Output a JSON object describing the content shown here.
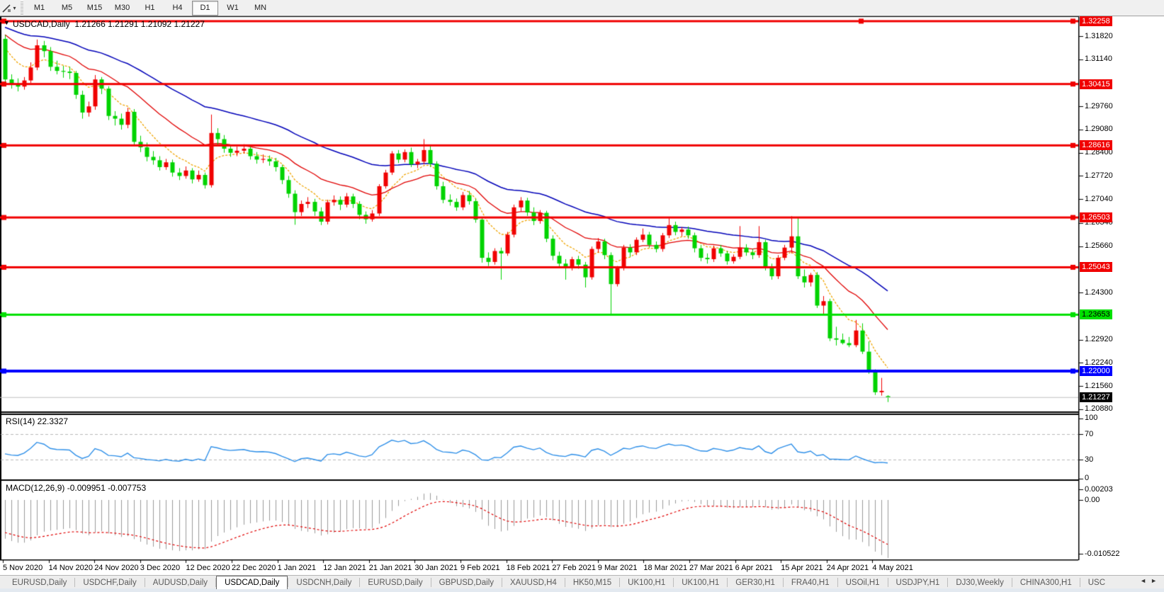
{
  "toolbar": {
    "cursor_tool": "line-draw",
    "timeframes": [
      "M1",
      "M5",
      "M15",
      "M30",
      "H1",
      "H4",
      "D1",
      "W1",
      "MN"
    ],
    "active_timeframe": "D1"
  },
  "chart_header": {
    "collapse_arrow": "▼",
    "symbol_label": "USDCAD,Daily",
    "ohlc_text": "1.21266 1.21291 1.21092 1.21227"
  },
  "tabs": {
    "items": [
      "EURUSD,Daily",
      "USDCHF,Daily",
      "AUDUSD,Daily",
      "USDCAD,Daily",
      "USDCNH,Daily",
      "EURUSD,Daily",
      "GBPUSD,Daily",
      "XAUUSD,H4",
      "HK50,M15",
      "UK100,H1",
      "UK100,H1",
      "GER30,H1",
      "FRA40,H1",
      "USOil,H1",
      "USDJPY,H1",
      "DJ30,Weekly",
      "CHINA300,H1",
      "USC"
    ],
    "active": "USDCAD,Daily",
    "scroll_left_arrow": "◄",
    "scroll_right_arrow": "►"
  },
  "chart_data": {
    "type": "candlestick",
    "symbol": "USDCAD",
    "timeframe": "Daily",
    "up_color": "#f00000",
    "down_color": "#00d300",
    "last_ohlc": {
      "open": "1.21266",
      "high": "1.21291",
      "low": "1.21092",
      "close": "1.21227"
    },
    "price_axis_ticks": [
      "1.31820",
      "1.31140",
      "1.29760",
      "1.29080",
      "1.28400",
      "1.27720",
      "1.27040",
      "1.26340",
      "1.25660",
      "1.24300",
      "1.22920",
      "1.22240",
      "1.21560",
      "1.20880"
    ],
    "price_badges": [
      {
        "text": "1.32258",
        "bg": "#f00000",
        "fg": "#ffffff"
      },
      {
        "text": "1.30415",
        "bg": "#f00000",
        "fg": "#ffffff"
      },
      {
        "text": "1.28616",
        "bg": "#f00000",
        "fg": "#ffffff"
      },
      {
        "text": "1.26503",
        "bg": "#f00000",
        "fg": "#ffffff"
      },
      {
        "text": "1.25043",
        "bg": "#f00000",
        "fg": "#ffffff"
      },
      {
        "text": "1.23653",
        "bg": "#00e000",
        "fg": "#000000"
      },
      {
        "text": "1.22000",
        "bg": "#0000ff",
        "fg": "#ffffff"
      },
      {
        "text": "1.21227",
        "bg": "#000000",
        "fg": "#ffffff"
      }
    ],
    "horizontal_lines": [
      {
        "price": 1.32258,
        "color": "#f00000",
        "width": 3,
        "handles": [
          2,
          1212,
          1511
        ]
      },
      {
        "price": 1.30415,
        "color": "#f00000",
        "width": 3,
        "handles": [
          2,
          1511
        ]
      },
      {
        "price": 1.28616,
        "color": "#f00000",
        "width": 3,
        "handles": [
          2,
          1511
        ]
      },
      {
        "price": 1.26503,
        "color": "#f00000",
        "width": 3,
        "handles": [
          2,
          1511
        ]
      },
      {
        "price": 1.25043,
        "color": "#f00000",
        "width": 3,
        "handles": [
          2,
          1511
        ]
      },
      {
        "price": 1.23653,
        "color": "#00e000",
        "width": 3,
        "handles": [
          2,
          1511
        ]
      },
      {
        "price": 1.22,
        "color": "#0000ff",
        "width": 4,
        "handles": [
          2,
          1511
        ]
      },
      {
        "price": 1.21227,
        "color": "#c0c0c0",
        "width": 1,
        "handles": []
      }
    ],
    "x_axis_dates": [
      "5 Nov 2020",
      "14 Nov 2020",
      "24 Nov 2020",
      "3 Dec 2020",
      "12 Dec 2020",
      "22 Dec 2020",
      "1 Jan 2021",
      "12 Jan 2021",
      "21 Jan 2021",
      "30 Jan 2021",
      "9 Feb 2021",
      "18 Feb 2021",
      "27 Feb 2021",
      "9 Mar 2021",
      "18 Mar 2021",
      "27 Mar 2021",
      "6 Apr 2021",
      "15 Apr 2021",
      "24 Apr 2021",
      "4 May 2021"
    ],
    "moving_averages": [
      {
        "name": "fast",
        "color": "#efa400",
        "style": "dashed",
        "period": 8,
        "seed": 1.3174
      },
      {
        "name": "medium",
        "color": "#e00000",
        "style": "solid",
        "period": 20,
        "seed": 1.32
      },
      {
        "name": "slow",
        "color": "#0000b8",
        "style": "solid",
        "period": 45,
        "seed": 1.3215
      }
    ],
    "rsi": {
      "label": "RSI(14) 22.3327",
      "period": 14,
      "value": 22.3327,
      "levels": [
        "100",
        "70",
        "30",
        "0"
      ],
      "level_lines": [
        70,
        30
      ],
      "line_color": "#2e8fe8"
    },
    "macd": {
      "label": "MACD(12,26,9) -0.009951 -0.007753",
      "main_value": -0.009951,
      "signal_value": -0.007753,
      "axis_labels": [
        "0.00203",
        "0.00",
        "-0.010522"
      ],
      "axis_max": 0.00203,
      "axis_min": -0.010522,
      "histogram_color": "#9a9a9a",
      "signal_color": "#e00000"
    },
    "candles": [
      [
        1.3174,
        1.3185,
        1.304,
        1.3055
      ],
      [
        1.3055,
        1.307,
        1.3028,
        1.304
      ],
      [
        1.304,
        1.3058,
        1.302,
        1.3034
      ],
      [
        1.3034,
        1.3062,
        1.3025,
        1.3052
      ],
      [
        1.3052,
        1.3105,
        1.3045,
        1.309
      ],
      [
        1.309,
        1.3172,
        1.3082,
        1.3155
      ],
      [
        1.3155,
        1.3168,
        1.312,
        1.3138
      ],
      [
        1.3138,
        1.315,
        1.308,
        1.3092
      ],
      [
        1.3092,
        1.311,
        1.307,
        1.308
      ],
      [
        1.308,
        1.3095,
        1.306,
        1.3078
      ],
      [
        1.3078,
        1.3092,
        1.3056,
        1.3074
      ],
      [
        1.3074,
        1.308,
        1.2998,
        1.301
      ],
      [
        1.301,
        1.3022,
        1.294,
        1.2958
      ],
      [
        1.2958,
        1.299,
        1.2946,
        1.2976
      ],
      [
        1.2976,
        1.3068,
        1.2966,
        1.3055
      ],
      [
        1.3055,
        1.3062,
        1.3012,
        1.3028
      ],
      [
        1.3028,
        1.3035,
        1.2936,
        1.2948
      ],
      [
        1.2948,
        1.2962,
        1.292,
        1.294
      ],
      [
        1.294,
        1.2955,
        1.2908,
        1.2922
      ],
      [
        1.2922,
        1.2972,
        1.2912,
        1.296
      ],
      [
        1.296,
        1.2968,
        1.286,
        1.2872
      ],
      [
        1.2872,
        1.289,
        1.2842,
        1.2856
      ],
      [
        1.2856,
        1.287,
        1.2815,
        1.2828
      ],
      [
        1.2828,
        1.2845,
        1.2805,
        1.2818
      ],
      [
        1.2818,
        1.283,
        1.2788,
        1.2798
      ],
      [
        1.2798,
        1.2822,
        1.279,
        1.2812
      ],
      [
        1.2812,
        1.282,
        1.277,
        1.2782
      ],
      [
        1.2782,
        1.2795,
        1.276,
        1.2772
      ],
      [
        1.2772,
        1.28,
        1.2764,
        1.2788
      ],
      [
        1.2788,
        1.2795,
        1.275,
        1.2762
      ],
      [
        1.2762,
        1.2788,
        1.2755,
        1.2775
      ],
      [
        1.2775,
        1.2782,
        1.2735,
        1.2745
      ],
      [
        1.2745,
        1.2952,
        1.2738,
        1.2898
      ],
      [
        1.2898,
        1.2912,
        1.2862,
        1.288
      ],
      [
        1.288,
        1.2892,
        1.284,
        1.2852
      ],
      [
        1.2852,
        1.2862,
        1.2828,
        1.284
      ],
      [
        1.284,
        1.2858,
        1.283,
        1.2846
      ],
      [
        1.2846,
        1.2865,
        1.2838,
        1.2852
      ],
      [
        1.2852,
        1.286,
        1.282,
        1.283
      ],
      [
        1.283,
        1.2842,
        1.2808,
        1.282
      ],
      [
        1.282,
        1.2835,
        1.281,
        1.2822
      ],
      [
        1.2822,
        1.2832,
        1.2802,
        1.2815
      ],
      [
        1.2815,
        1.2825,
        1.2785,
        1.2798
      ],
      [
        1.2798,
        1.2805,
        1.2748,
        1.276
      ],
      [
        1.276,
        1.2772,
        1.2708,
        1.272
      ],
      [
        1.272,
        1.273,
        1.2629,
        1.2666
      ],
      [
        1.2666,
        1.27,
        1.2655,
        1.269
      ],
      [
        1.269,
        1.271,
        1.2678,
        1.2696
      ],
      [
        1.2696,
        1.2705,
        1.2655,
        1.2668
      ],
      [
        1.2668,
        1.268,
        1.2628,
        1.2638
      ],
      [
        1.2638,
        1.2702,
        1.263,
        1.2695
      ],
      [
        1.2695,
        1.2715,
        1.2685,
        1.2702
      ],
      [
        1.2702,
        1.2712,
        1.2672,
        1.2688
      ],
      [
        1.2688,
        1.2722,
        1.268,
        1.2712
      ],
      [
        1.2712,
        1.272,
        1.2678,
        1.269
      ],
      [
        1.269,
        1.2698,
        1.2645,
        1.2658
      ],
      [
        1.2658,
        1.2668,
        1.2632,
        1.2645
      ],
      [
        1.2645,
        1.2672,
        1.2638,
        1.2662
      ],
      [
        1.2662,
        1.2748,
        1.2655,
        1.2742
      ],
      [
        1.2742,
        1.279,
        1.2735,
        1.2782
      ],
      [
        1.2782,
        1.2845,
        1.2775,
        1.2838
      ],
      [
        1.2838,
        1.2848,
        1.281,
        1.282
      ],
      [
        1.282,
        1.285,
        1.2812,
        1.2842
      ],
      [
        1.2842,
        1.2855,
        1.2798,
        1.2806
      ],
      [
        1.2806,
        1.2822,
        1.2795,
        1.2814
      ],
      [
        1.2814,
        1.288,
        1.2806,
        1.2848
      ],
      [
        1.2848,
        1.2862,
        1.2798,
        1.2808
      ],
      [
        1.2808,
        1.2815,
        1.2732,
        1.2742
      ],
      [
        1.2742,
        1.2755,
        1.2692,
        1.2702
      ],
      [
        1.2702,
        1.2718,
        1.2685,
        1.2696
      ],
      [
        1.2696,
        1.2706,
        1.267,
        1.268
      ],
      [
        1.268,
        1.2725,
        1.2672,
        1.2716
      ],
      [
        1.2716,
        1.2728,
        1.2688,
        1.2698
      ],
      [
        1.2698,
        1.2705,
        1.2635,
        1.2644
      ],
      [
        1.2644,
        1.265,
        1.2518,
        1.2532
      ],
      [
        1.2532,
        1.2548,
        1.2508,
        1.252
      ],
      [
        1.252,
        1.256,
        1.2512,
        1.2552
      ],
      [
        1.2552,
        1.2562,
        1.2468,
        1.2545
      ],
      [
        1.2545,
        1.2608,
        1.2538,
        1.26
      ],
      [
        1.26,
        1.2688,
        1.2592,
        1.268
      ],
      [
        1.268,
        1.271,
        1.2668,
        1.27
      ],
      [
        1.27,
        1.2708,
        1.2655,
        1.2665
      ],
      [
        1.2665,
        1.268,
        1.2628,
        1.264
      ],
      [
        1.264,
        1.2672,
        1.2632,
        1.2664
      ],
      [
        1.2664,
        1.267,
        1.2578,
        1.2588
      ],
      [
        1.2588,
        1.2598,
        1.2525,
        1.2538
      ],
      [
        1.2538,
        1.255,
        1.2502,
        1.2515
      ],
      [
        1.2515,
        1.2528,
        1.2468,
        1.2502
      ],
      [
        1.2502,
        1.2535,
        1.2495,
        1.2528
      ],
      [
        1.2528,
        1.2538,
        1.25,
        1.2512
      ],
      [
        1.2512,
        1.252,
        1.2445,
        1.2475
      ],
      [
        1.2475,
        1.2565,
        1.2468,
        1.2558
      ],
      [
        1.2558,
        1.259,
        1.2548,
        1.258
      ],
      [
        1.258,
        1.2588,
        1.2528,
        1.254
      ],
      [
        1.254,
        1.2548,
        1.2365,
        1.2455
      ],
      [
        1.2455,
        1.2508,
        1.2448,
        1.2502
      ],
      [
        1.2502,
        1.257,
        1.2495,
        1.2562
      ],
      [
        1.2562,
        1.2572,
        1.2535,
        1.2548
      ],
      [
        1.2548,
        1.2592,
        1.254,
        1.2585
      ],
      [
        1.2585,
        1.2618,
        1.2578,
        1.26
      ],
      [
        1.26,
        1.2608,
        1.2562,
        1.257
      ],
      [
        1.257,
        1.258,
        1.2548,
        1.2558
      ],
      [
        1.2558,
        1.2605,
        1.255,
        1.2598
      ],
      [
        1.2598,
        1.2648,
        1.259,
        1.2628
      ],
      [
        1.2628,
        1.2638,
        1.2598,
        1.2608
      ],
      [
        1.2608,
        1.2622,
        1.2595,
        1.2615
      ],
      [
        1.2615,
        1.2624,
        1.2588,
        1.2598
      ],
      [
        1.2598,
        1.2606,
        1.2548,
        1.256
      ],
      [
        1.256,
        1.257,
        1.2522,
        1.2532
      ],
      [
        1.2532,
        1.2545,
        1.2515,
        1.2528
      ],
      [
        1.2528,
        1.2568,
        1.252,
        1.256
      ],
      [
        1.256,
        1.257,
        1.2535,
        1.2545
      ],
      [
        1.2545,
        1.2552,
        1.2512,
        1.2522
      ],
      [
        1.2522,
        1.2542,
        1.2515,
        1.2535
      ],
      [
        1.2535,
        1.2625,
        1.2528,
        1.2562
      ],
      [
        1.2562,
        1.2572,
        1.2538,
        1.2548
      ],
      [
        1.2548,
        1.2558,
        1.2528,
        1.254
      ],
      [
        1.254,
        1.2625,
        1.2532,
        1.2578
      ],
      [
        1.2578,
        1.2585,
        1.2495,
        1.2506
      ],
      [
        1.2506,
        1.2515,
        1.2468,
        1.2478
      ],
      [
        1.2478,
        1.254,
        1.247,
        1.2532
      ],
      [
        1.2532,
        1.257,
        1.2525,
        1.2562
      ],
      [
        1.2562,
        1.2654,
        1.2545,
        1.2595
      ],
      [
        1.2595,
        1.265,
        1.247,
        1.2478
      ],
      [
        1.2478,
        1.2498,
        1.2445,
        1.246
      ],
      [
        1.246,
        1.2488,
        1.2448,
        1.2482
      ],
      [
        1.2482,
        1.249,
        1.2385,
        1.2392
      ],
      [
        1.2392,
        1.242,
        1.2368,
        1.2405
      ],
      [
        1.2405,
        1.2412,
        1.2288,
        1.2296
      ],
      [
        1.2296,
        1.233,
        1.2275,
        1.2292
      ],
      [
        1.2292,
        1.231,
        1.2278,
        1.2282
      ],
      [
        1.2282,
        1.23,
        1.227,
        1.2276
      ],
      [
        1.2276,
        1.235,
        1.227,
        1.2319
      ],
      [
        1.2319,
        1.234,
        1.225,
        1.2257
      ],
      [
        1.2257,
        1.2287,
        1.2192,
        1.2196
      ],
      [
        1.2196,
        1.2205,
        1.213,
        1.2138
      ],
      [
        1.2138,
        1.218,
        1.2128,
        1.2142
      ],
      [
        1.21266,
        1.21291,
        1.21092,
        1.21227
      ]
    ]
  }
}
